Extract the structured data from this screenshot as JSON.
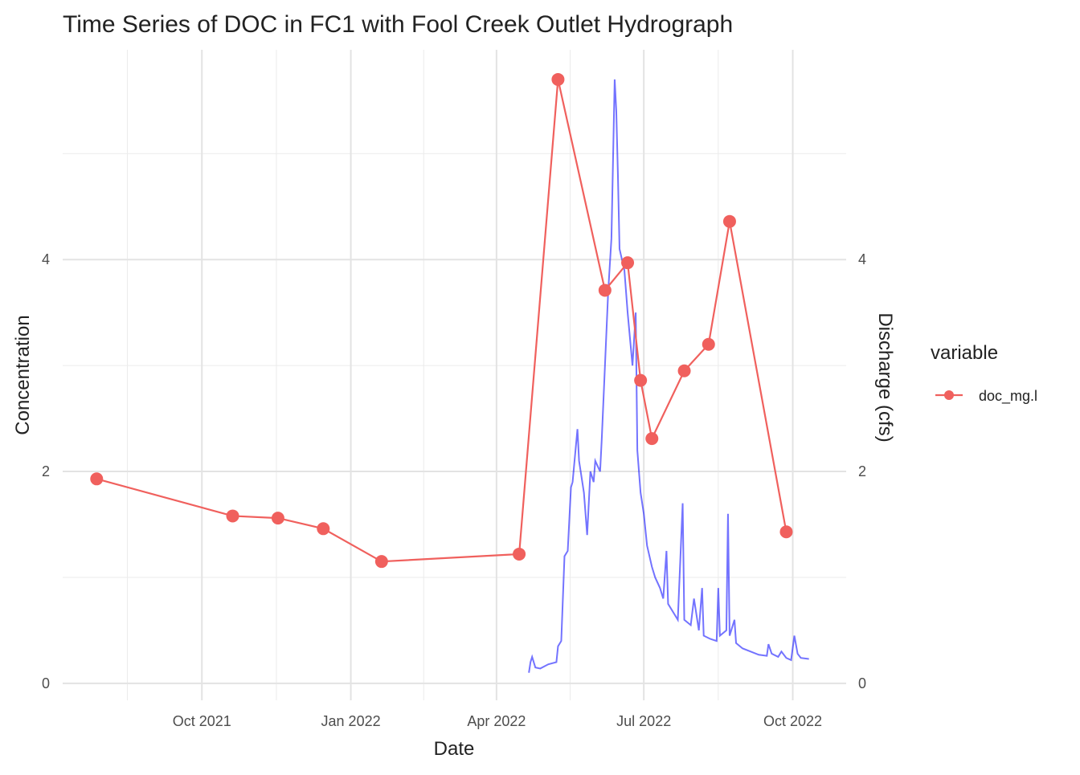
{
  "chart_data": {
    "type": "line",
    "title": "Time Series of DOC in FC1 with Fool Creek Outlet Hydrograph",
    "x_label": "Date",
    "y_label": "Concentration",
    "y2_label": "Discharge (cfs)",
    "legend_title": "variable",
    "legend_position": "right",
    "grid": true,
    "xlim": [
      "2021-07-07",
      "2022-11-03"
    ],
    "xticks": [
      {
        "value": "2021-10-01",
        "label": "Oct 2021"
      },
      {
        "value": "2022-01-01",
        "label": "Jan 2022"
      },
      {
        "value": "2022-04-01",
        "label": "Apr 2022"
      },
      {
        "value": "2022-07-01",
        "label": "Jul 2022"
      },
      {
        "value": "2022-10-01",
        "label": "Oct 2022"
      }
    ],
    "ylim": [
      -0.16,
      5.98
    ],
    "yticks": [
      0,
      2,
      4
    ],
    "y2lim": [
      -0.16,
      5.98
    ],
    "y2ticks": [
      0,
      2,
      4
    ],
    "series": [
      {
        "name": "doc_mg.l",
        "color": "#f0605d",
        "markers": true,
        "x": [
          "2021-07-28",
          "2021-10-20",
          "2021-11-17",
          "2021-12-15",
          "2022-01-20",
          "2022-04-15",
          "2022-05-09",
          "2022-06-07",
          "2022-06-21",
          "2022-06-29",
          "2022-07-06",
          "2022-07-26",
          "2022-08-10",
          "2022-08-23",
          "2022-09-27"
        ],
        "values": [
          1.93,
          1.58,
          1.56,
          1.46,
          1.15,
          1.22,
          5.7,
          3.71,
          3.97,
          2.86,
          2.31,
          2.95,
          3.2,
          4.36,
          1.43
        ]
      },
      {
        "color": "#0000ff",
        "axis": "y2",
        "markers": false,
        "x": [
          "2022-04-21",
          "2022-04-22",
          "2022-04-23",
          "2022-04-25",
          "2022-04-28",
          "2022-05-03",
          "2022-05-08",
          "2022-05-09",
          "2022-05-11",
          "2022-05-13",
          "2022-05-15",
          "2022-05-17",
          "2022-05-18",
          "2022-05-21",
          "2022-05-22",
          "2022-05-25",
          "2022-05-27",
          "2022-05-29",
          "2022-05-31",
          "2022-06-01",
          "2022-06-04",
          "2022-06-05",
          "2022-06-07",
          "2022-06-09",
          "2022-06-11",
          "2022-06-13",
          "2022-06-14",
          "2022-06-15",
          "2022-06-16",
          "2022-06-19",
          "2022-06-21",
          "2022-06-24",
          "2022-06-26",
          "2022-06-27",
          "2022-06-29",
          "2022-07-01",
          "2022-07-03",
          "2022-07-06",
          "2022-07-08",
          "2022-07-11",
          "2022-07-13",
          "2022-07-15",
          "2022-07-16",
          "2022-07-20",
          "2022-07-22",
          "2022-07-25",
          "2022-07-26",
          "2022-07-30",
          "2022-08-01",
          "2022-08-04",
          "2022-08-06",
          "2022-08-07",
          "2022-08-11",
          "2022-08-15",
          "2022-08-16",
          "2022-08-17",
          "2022-08-21",
          "2022-08-22",
          "2022-08-23",
          "2022-08-26",
          "2022-08-27",
          "2022-08-31",
          "2022-09-05",
          "2022-09-10",
          "2022-09-15",
          "2022-09-16",
          "2022-09-18",
          "2022-09-22",
          "2022-09-24",
          "2022-09-27",
          "2022-09-30",
          "2022-10-02",
          "2022-10-04",
          "2022-10-06",
          "2022-10-11"
        ],
        "values": [
          0.1,
          0.2,
          0.25,
          0.15,
          0.14,
          0.18,
          0.2,
          0.35,
          0.4,
          1.2,
          1.25,
          1.85,
          1.9,
          2.4,
          2.1,
          1.8,
          1.4,
          2.0,
          1.9,
          2.1,
          2.0,
          2.3,
          3.0,
          3.7,
          4.2,
          5.7,
          5.4,
          4.8,
          4.1,
          3.9,
          3.5,
          3.0,
          3.5,
          2.2,
          1.8,
          1.6,
          1.3,
          1.1,
          1.0,
          0.9,
          0.8,
          1.25,
          0.75,
          0.65,
          0.6,
          1.7,
          0.6,
          0.55,
          0.8,
          0.5,
          0.9,
          0.45,
          0.42,
          0.4,
          0.9,
          0.45,
          0.5,
          1.6,
          0.45,
          0.6,
          0.38,
          0.33,
          0.3,
          0.27,
          0.26,
          0.37,
          0.28,
          0.25,
          0.3,
          0.24,
          0.22,
          0.45,
          0.28,
          0.24,
          0.23
        ]
      }
    ]
  }
}
